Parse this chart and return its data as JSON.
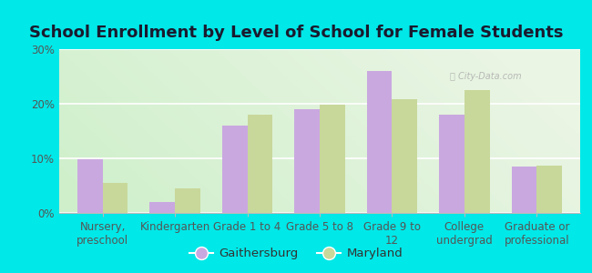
{
  "title": "School Enrollment by Level of School for Female Students",
  "categories": [
    "Nursery,\npreschool",
    "Kindergarten",
    "Grade 1 to 4",
    "Grade 5 to 8",
    "Grade 9 to\n12",
    "College\nundergrad",
    "Graduate or\nprofessional"
  ],
  "gaithersburg": [
    9.8,
    2.0,
    16.0,
    19.0,
    26.0,
    18.0,
    8.5
  ],
  "maryland": [
    5.5,
    4.5,
    18.0,
    19.8,
    20.8,
    22.5,
    8.7
  ],
  "gaithersburg_color": "#c9a8e0",
  "maryland_color": "#c8d89a",
  "background_outer": "#00e8e8",
  "background_inner": "#eaf5e4",
  "ylim": [
    0,
    30
  ],
  "yticks": [
    0,
    10,
    20,
    30
  ],
  "ytick_labels": [
    "0%",
    "10%",
    "20%",
    "30%"
  ],
  "legend_label_1": "Gaithersburg",
  "legend_label_2": "Maryland",
  "title_fontsize": 13,
  "tick_fontsize": 8.5,
  "legend_fontsize": 9.5,
  "bar_width": 0.35
}
